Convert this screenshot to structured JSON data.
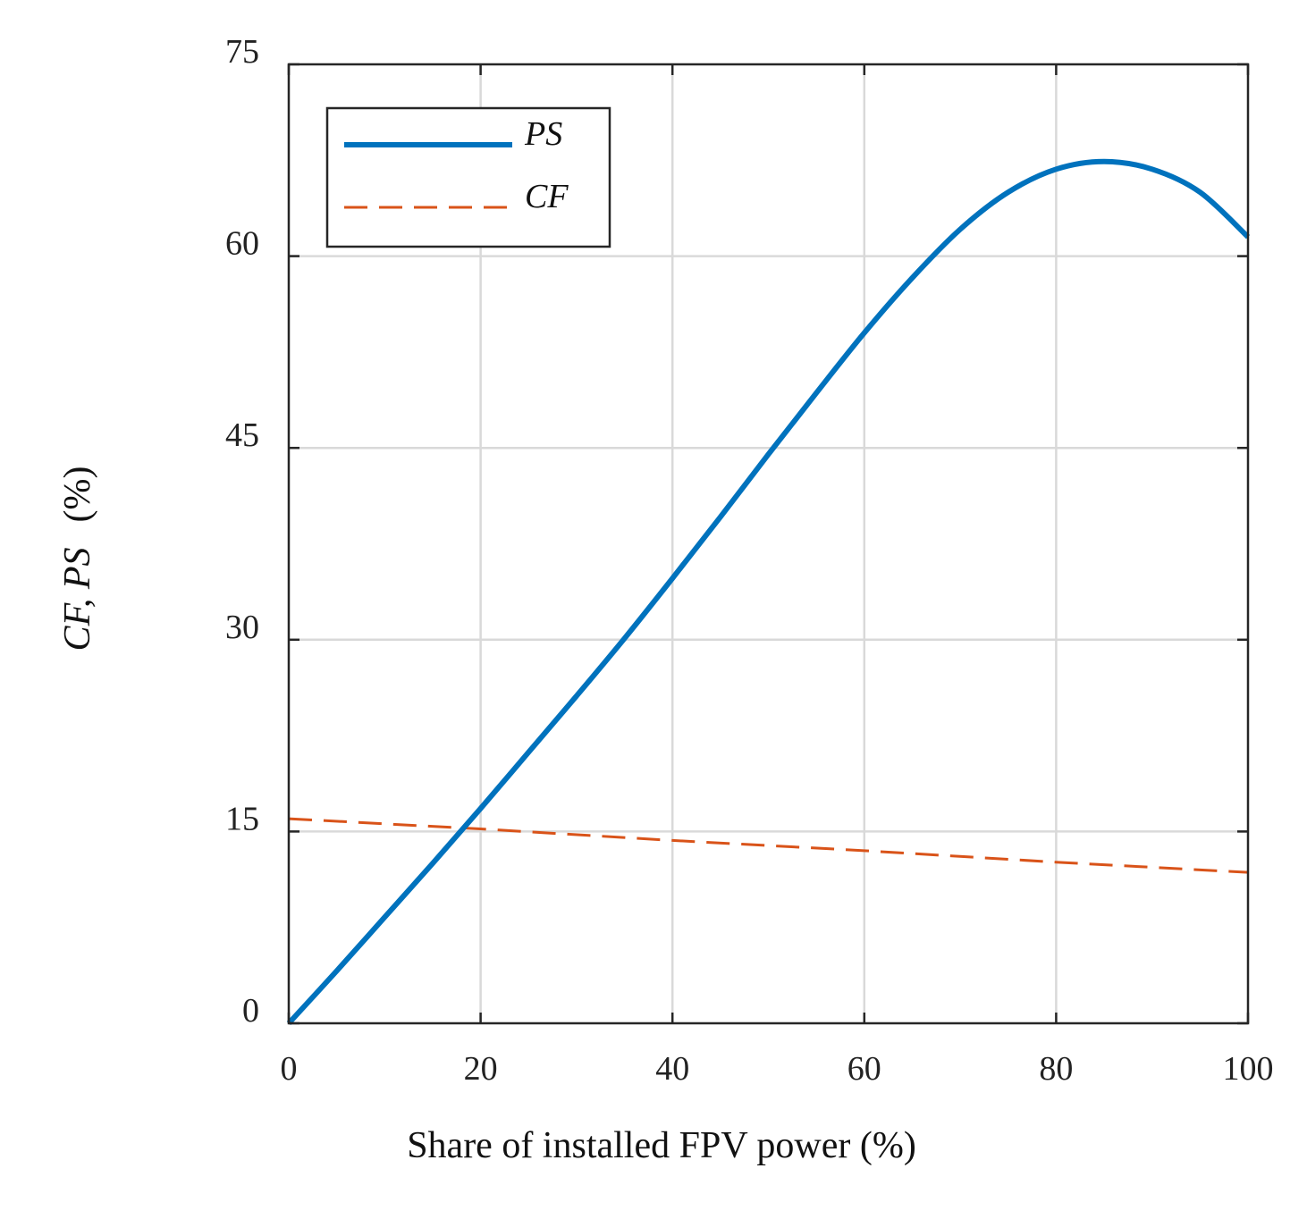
{
  "chart_data": {
    "type": "line",
    "title": "",
    "xlabel": "Share of installed FPV power (%)",
    "ylabel": {
      "italic": "CF, PS",
      "unit": "(%)"
    },
    "xlim": [
      0,
      100
    ],
    "ylim": [
      0,
      75
    ],
    "xticks": [
      "0",
      "20",
      "40",
      "60",
      "80",
      "100"
    ],
    "yticks": [
      "0",
      "15",
      "30",
      "45",
      "60",
      "75"
    ],
    "grid": true,
    "legend_position": "top-left",
    "series": [
      {
        "name": "PS",
        "style": "solid",
        "color": "#0072BD",
        "x": [
          0,
          5,
          10,
          15,
          20,
          25,
          30,
          35,
          40,
          45,
          50,
          55,
          60,
          65,
          70,
          75,
          80,
          85,
          90,
          95,
          100
        ],
        "y": [
          0,
          4.1,
          8.3,
          12.5,
          16.8,
          21.2,
          25.6,
          30.1,
          34.8,
          39.6,
          44.5,
          49.3,
          54.0,
          58.3,
          62.1,
          65.0,
          66.8,
          67.4,
          66.8,
          65.0,
          61.5
        ]
      },
      {
        "name": "CF",
        "style": "dashed",
        "color": "#D95319",
        "x": [
          0,
          20,
          40,
          60,
          80,
          100
        ],
        "y": [
          16.0,
          15.2,
          14.3,
          13.5,
          12.6,
          11.8
        ]
      }
    ]
  }
}
